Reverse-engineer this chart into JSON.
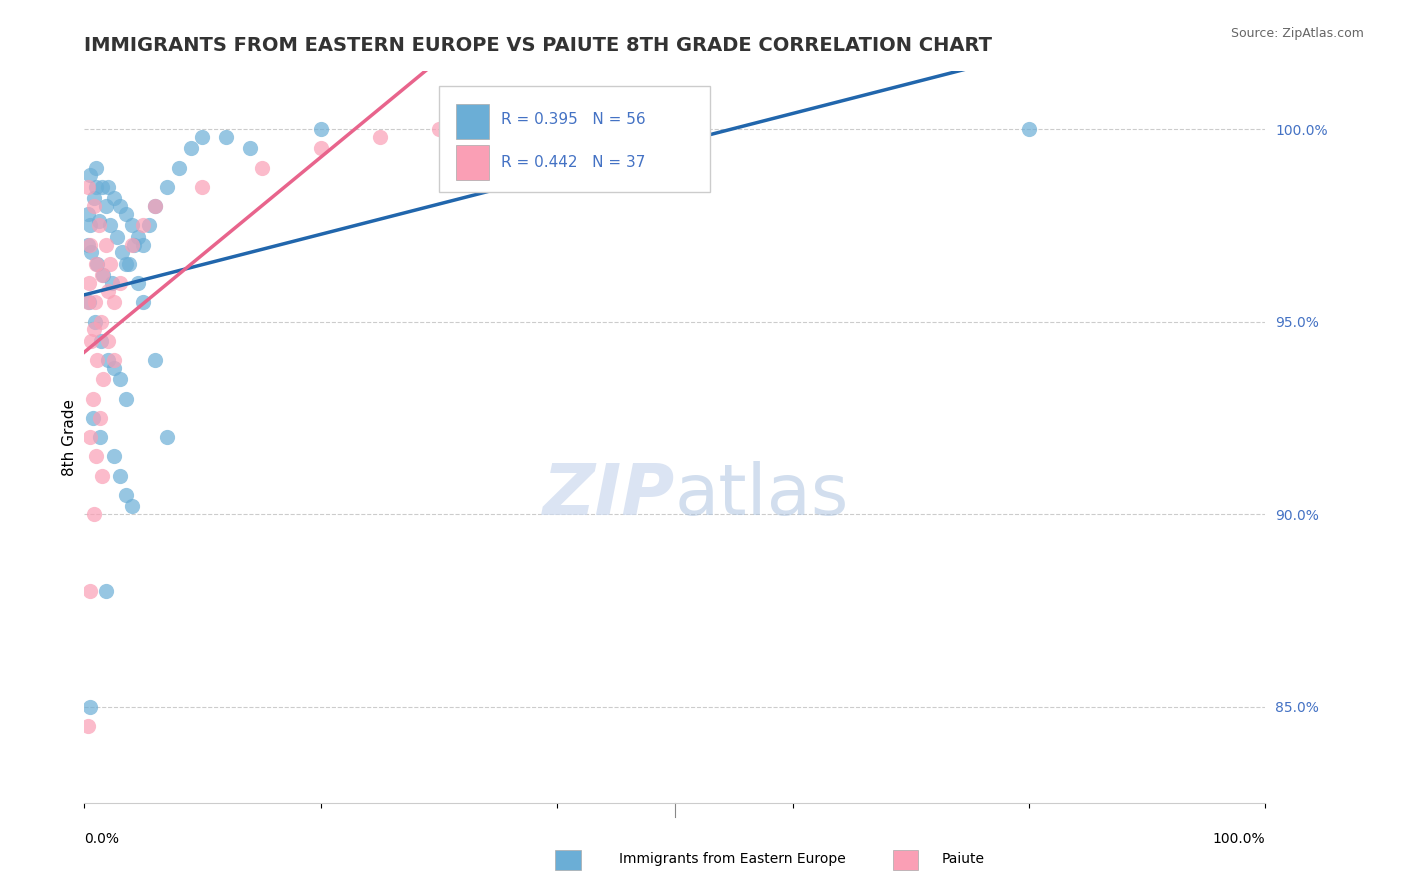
{
  "title": "IMMIGRANTS FROM EASTERN EUROPE VS PAIUTE 8TH GRADE CORRELATION CHART",
  "source": "Source: ZipAtlas.com",
  "ylabel": "8th Grade",
  "x_legend_label1": "Immigrants from Eastern Europe",
  "x_legend_label2": "Paiute",
  "legend_r1": "R = 0.395",
  "legend_n1": "N = 56",
  "legend_r2": "R = 0.442",
  "legend_n2": "N = 37",
  "blue_color": "#6baed6",
  "pink_color": "#fa9fb5",
  "blue_line_color": "#2166ac",
  "pink_line_color": "#e8648c",
  "right_yticks": [
    85.0,
    90.0,
    95.0,
    100.0
  ],
  "right_ytick_labels": [
    "85.0%",
    "90.0%",
    "95.0%",
    "100.0%"
  ],
  "blue_points": [
    [
      0.5,
      97.5
    ],
    [
      1.0,
      98.5
    ],
    [
      1.5,
      98.5
    ],
    [
      2.0,
      98.5
    ],
    [
      2.5,
      98.2
    ],
    [
      3.0,
      98.0
    ],
    [
      3.5,
      97.8
    ],
    [
      4.0,
      97.5
    ],
    [
      4.5,
      97.2
    ],
    [
      5.0,
      97.0
    ],
    [
      0.3,
      97.8
    ],
    [
      0.8,
      98.2
    ],
    [
      1.2,
      97.6
    ],
    [
      1.8,
      98.0
    ],
    [
      2.2,
      97.5
    ],
    [
      2.8,
      97.2
    ],
    [
      3.2,
      96.8
    ],
    [
      3.8,
      96.5
    ],
    [
      0.6,
      96.8
    ],
    [
      1.1,
      96.5
    ],
    [
      1.6,
      96.2
    ],
    [
      2.3,
      96.0
    ],
    [
      3.5,
      96.5
    ],
    [
      4.2,
      97.0
    ],
    [
      5.5,
      97.5
    ],
    [
      6.0,
      98.0
    ],
    [
      7.0,
      98.5
    ],
    [
      8.0,
      99.0
    ],
    [
      9.0,
      99.5
    ],
    [
      10.0,
      99.8
    ],
    [
      0.4,
      95.5
    ],
    [
      0.9,
      95.0
    ],
    [
      1.4,
      94.5
    ],
    [
      2.0,
      94.0
    ],
    [
      2.5,
      93.8
    ],
    [
      3.0,
      93.5
    ],
    [
      3.5,
      93.0
    ],
    [
      0.7,
      92.5
    ],
    [
      1.3,
      92.0
    ],
    [
      2.5,
      91.5
    ],
    [
      3.0,
      91.0
    ],
    [
      3.5,
      90.5
    ],
    [
      4.0,
      90.2
    ],
    [
      0.5,
      98.8
    ],
    [
      1.0,
      99.0
    ],
    [
      12.0,
      99.8
    ],
    [
      14.0,
      99.5
    ],
    [
      4.5,
      96.0
    ],
    [
      5.0,
      95.5
    ],
    [
      6.0,
      94.0
    ],
    [
      7.0,
      92.0
    ],
    [
      1.8,
      88.0
    ],
    [
      0.5,
      85.0
    ],
    [
      20.0,
      100.0
    ],
    [
      80.0,
      100.0
    ],
    [
      0.3,
      97.0
    ]
  ],
  "pink_points": [
    [
      0.5,
      97.0
    ],
    [
      1.0,
      96.5
    ],
    [
      1.5,
      96.2
    ],
    [
      2.0,
      95.8
    ],
    [
      2.5,
      95.5
    ],
    [
      0.3,
      98.5
    ],
    [
      0.8,
      98.0
    ],
    [
      1.2,
      97.5
    ],
    [
      1.8,
      97.0
    ],
    [
      2.2,
      96.5
    ],
    [
      0.4,
      96.0
    ],
    [
      0.9,
      95.5
    ],
    [
      1.4,
      95.0
    ],
    [
      2.0,
      94.5
    ],
    [
      2.5,
      94.0
    ],
    [
      0.6,
      94.5
    ],
    [
      1.1,
      94.0
    ],
    [
      1.6,
      93.5
    ],
    [
      0.7,
      93.0
    ],
    [
      1.3,
      92.5
    ],
    [
      0.5,
      92.0
    ],
    [
      1.0,
      91.5
    ],
    [
      1.5,
      91.0
    ],
    [
      0.3,
      95.5
    ],
    [
      0.8,
      94.8
    ],
    [
      3.0,
      96.0
    ],
    [
      4.0,
      97.0
    ],
    [
      5.0,
      97.5
    ],
    [
      6.0,
      98.0
    ],
    [
      10.0,
      98.5
    ],
    [
      15.0,
      99.0
    ],
    [
      20.0,
      99.5
    ],
    [
      0.5,
      88.0
    ],
    [
      0.3,
      84.5
    ],
    [
      25.0,
      99.8
    ],
    [
      30.0,
      100.0
    ],
    [
      0.8,
      90.0
    ]
  ]
}
